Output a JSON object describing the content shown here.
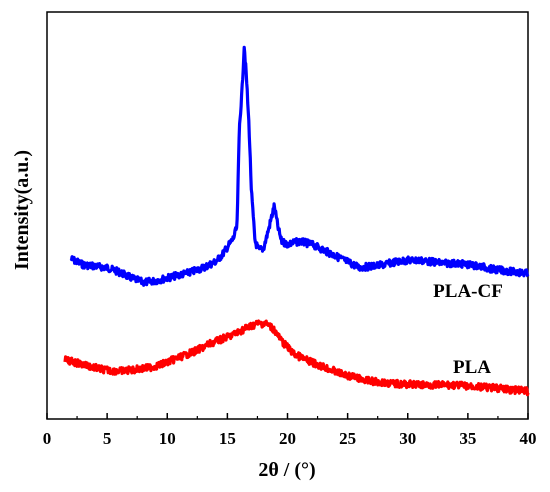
{
  "chart_data": {
    "type": "line",
    "title": "",
    "xlabel": "2θ / (°)",
    "ylabel": "Intensity(a.u.)",
    "xlim": [
      0,
      40
    ],
    "x_ticks": [
      0,
      5,
      10,
      15,
      20,
      25,
      30,
      35,
      40
    ],
    "y_ticks_shown": false,
    "ylim": [
      0,
      100
    ],
    "grid": false,
    "legend": "inline-labels",
    "series": [
      {
        "name": "PLA-CF",
        "color": "#0000ff",
        "x": [
          2,
          3,
          4,
          5,
          6,
          7,
          8,
          9,
          10,
          11,
          12,
          13,
          14,
          14.5,
          15,
          15.5,
          15.8,
          16.0,
          16.2,
          16.4,
          16.6,
          16.8,
          17.0,
          17.3,
          17.6,
          18.0,
          18.3,
          18.6,
          18.9,
          19.2,
          19.5,
          20,
          21,
          22,
          23,
          24,
          25,
          26,
          27,
          28,
          29,
          30,
          31,
          32,
          33,
          34,
          35,
          36,
          37,
          38,
          39,
          40
        ],
        "y": [
          27,
          25,
          24.5,
          24,
          22.5,
          20.5,
          19,
          19.5,
          20.5,
          21.5,
          22.5,
          24,
          26,
          28,
          31,
          34,
          38,
          72,
          83,
          100,
          88,
          72,
          50,
          33,
          30,
          30.5,
          35,
          40,
          45,
          38,
          33,
          32,
          33,
          32,
          30,
          28,
          26,
          24,
          24.5,
          25,
          26,
          26.5,
          26.5,
          26,
          25.5,
          25.5,
          25,
          24.5,
          23.5,
          23,
          22.5,
          22
        ]
      },
      {
        "name": "PLA",
        "color": "#ff0000",
        "x": [
          1.5,
          2.5,
          3.5,
          4.5,
          5.5,
          6.5,
          7.5,
          8.5,
          9.5,
          10.5,
          11.5,
          12.5,
          13.5,
          14.5,
          15.5,
          16.5,
          17.5,
          18.2,
          18.8,
          19.5,
          20.5,
          21.5,
          22.5,
          23.5,
          24.5,
          25.5,
          26.5,
          27.5,
          28.5,
          29.5,
          30.5,
          31.5,
          32.5,
          33.5,
          34.5,
          35.5,
          36.5,
          37.5,
          38.5,
          39.5,
          40
        ],
        "y": [
          8,
          7,
          6,
          5,
          4.5,
          4.5,
          5,
          5.5,
          6.5,
          8,
          9.5,
          11,
          13,
          14.5,
          16,
          18,
          19.5,
          19.5,
          18,
          14,
          10,
          8,
          6.5,
          5,
          3.5,
          2.5,
          1.5,
          1,
          0.5,
          0.3,
          0.2,
          0,
          0,
          0,
          -0.2,
          -0.5,
          -0.8,
          -1,
          -1.5,
          -1.8,
          -2
        ]
      }
    ]
  }
}
